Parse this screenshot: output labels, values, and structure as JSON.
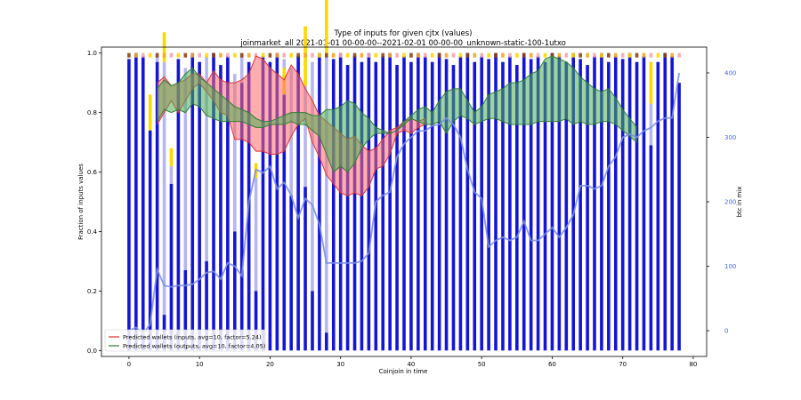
{
  "chart_data": {
    "type": "bar",
    "title": "Type of inputs for given cjtx (values)",
    "subtitle": "joinmarket_all 2021-01-01 00-00-00--2021-02-01 00-00-00_unknown-static-100-1utxo",
    "xlabel": "Coinjoin in time",
    "ylabel": "Fraction of inputs values",
    "ylabel_right": "btc in mix",
    "xlim": [
      -3.9,
      81.9
    ],
    "ylim": [
      -0.02,
      1.02
    ],
    "ylim_right": [
      -40,
      440
    ],
    "xticks": [
      0,
      10,
      20,
      30,
      40,
      50,
      60,
      70,
      80
    ],
    "yticks": [
      0.0,
      0.2,
      0.4,
      0.6,
      0.8,
      1.0
    ],
    "yticks_right": [
      0,
      100,
      200,
      300,
      400
    ],
    "bar_colors": {
      "fresh": "#1515d8",
      "remix": "#b6b6f2",
      "yellow": "#ffd700",
      "orange": "#f5a623",
      "brown": "#8b4513",
      "pink": "#f4a6b4"
    },
    "bars_top": [
      0.98,
      1.0,
      0.99,
      0.74,
      0.99,
      0.97,
      0.62,
      0.98,
      0.95,
      1.0,
      0.97,
      0.99,
      1.0,
      0.96,
      0.99,
      0.93,
      1.0,
      0.97,
      0.58,
      0.99,
      0.97,
      1.0,
      0.98,
      0.95,
      0.99,
      0.89,
      0.97,
      1.0,
      0.99,
      0.98,
      1.0,
      0.96,
      0.99,
      0.97,
      1.0,
      0.97,
      0.99,
      1.0,
      0.96,
      0.99,
      0.97,
      1.0,
      0.99,
      0.97,
      1.0,
      0.98,
      0.96,
      0.99,
      1.0,
      0.97,
      0.99,
      0.98,
      1.0,
      0.97,
      0.99,
      0.96,
      1.0,
      0.98,
      0.99,
      0.97,
      1.0,
      0.99,
      0.97,
      1.0,
      0.98,
      0.96,
      0.99,
      1.0,
      0.97,
      0.99,
      0.98,
      1.0,
      0.97,
      0.99,
      0.83,
      0.97,
      1.0,
      0.99,
      0.9
    ],
    "bars_fresh": [
      0.98,
      1.0,
      0.99,
      0.74,
      0.97,
      0.12,
      0.56,
      0.98,
      0.27,
      1.0,
      0.97,
      0.3,
      1.0,
      0.96,
      0.99,
      0.4,
      0.9,
      0.97,
      0.2,
      0.99,
      0.97,
      1.0,
      0.86,
      0.52,
      0.99,
      0.55,
      0.2,
      1.0,
      0.06,
      0.98,
      1.0,
      0.96,
      0.99,
      0.97,
      1.0,
      0.97,
      0.99,
      1.0,
      0.96,
      0.99,
      0.97,
      1.0,
      0.99,
      0.97,
      1.0,
      0.98,
      0.96,
      0.99,
      1.0,
      0.97,
      0.99,
      0.98,
      1.0,
      0.97,
      0.99,
      0.96,
      1.0,
      0.98,
      0.99,
      0.97,
      1.0,
      0.99,
      0.97,
      1.0,
      0.98,
      0.96,
      0.99,
      1.0,
      0.97,
      0.99,
      0.98,
      1.0,
      0.97,
      0.99,
      0.69,
      0.97,
      1.0,
      0.99,
      0.9
    ],
    "bars_yellow": [
      0,
      0,
      0,
      0.0,
      0,
      0,
      0,
      0,
      0,
      0,
      0,
      0,
      0,
      0,
      0,
      0,
      0,
      0,
      0,
      0,
      0,
      0,
      0,
      0,
      0,
      0,
      0,
      0,
      0,
      0,
      0,
      0,
      0,
      0,
      0,
      0,
      0,
      0,
      0,
      0,
      0,
      0,
      0,
      0,
      0,
      0,
      0,
      0,
      0,
      0,
      0,
      0,
      0,
      0,
      0,
      0,
      0,
      0,
      0,
      0,
      0,
      0,
      0,
      0,
      0,
      0,
      0,
      0,
      0,
      0,
      0,
      0,
      0,
      0,
      0,
      0,
      0,
      0,
      0
    ],
    "cross_bars": [
      {
        "x": 3,
        "top": 0.74,
        "yellow": 0.12
      },
      {
        "x": 5,
        "top": 0.97,
        "yellow": 0.1
      },
      {
        "x": 6,
        "top": 0.62,
        "yellow": 0.06
      },
      {
        "x": 18,
        "top": 0.58,
        "yellow": 0.05
      },
      {
        "x": 22,
        "top": 0.86,
        "yellow": 0.09
      },
      {
        "x": 25,
        "top": 0.89,
        "yellow": 0.2
      },
      {
        "x": 28,
        "top": 0.99,
        "yellow": 0.7
      },
      {
        "x": 74,
        "top": 0.83,
        "yellow": 0.14
      }
    ],
    "overlay_series": [
      {
        "name": "Predicted wallets (inputs, avg=10, factor=5.24)",
        "color": "#e03030",
        "fill": "#ff6b6b",
        "x": [
          4,
          5,
          6,
          7,
          8,
          9,
          10,
          11,
          12,
          13,
          14,
          15,
          16,
          17,
          18,
          19,
          20,
          21,
          22,
          23,
          24,
          25,
          26,
          27,
          28,
          29,
          30,
          31,
          32,
          33,
          34,
          35,
          36,
          37,
          38,
          39,
          40,
          41,
          42
        ],
        "upper": [
          0.9,
          0.92,
          0.89,
          0.9,
          0.91,
          0.93,
          0.93,
          0.9,
          0.94,
          0.91,
          0.9,
          0.9,
          0.91,
          0.93,
          0.99,
          0.98,
          0.95,
          0.93,
          0.91,
          0.96,
          0.93,
          0.88,
          0.84,
          0.79,
          0.77,
          0.75,
          0.73,
          0.71,
          0.72,
          0.69,
          0.67,
          0.68,
          0.71,
          0.74,
          0.75,
          0.77,
          0.78,
          0.77,
          0.78
        ],
        "lower": [
          0.76,
          0.8,
          0.84,
          0.8,
          0.84,
          0.88,
          0.9,
          0.87,
          0.84,
          0.8,
          0.79,
          0.71,
          0.71,
          0.7,
          0.67,
          0.67,
          0.66,
          0.66,
          0.67,
          0.72,
          0.76,
          0.78,
          0.7,
          0.65,
          0.59,
          0.56,
          0.53,
          0.52,
          0.53,
          0.52,
          0.55,
          0.61,
          0.62,
          0.66,
          0.73,
          0.74,
          0.73,
          0.75,
          0.76
        ]
      },
      {
        "name": "Predicted wallets (outputs, avg=10, factor=4.05)",
        "color": "#2e7d32",
        "fill": "#4caf50",
        "x": [
          4,
          5,
          6,
          7,
          8,
          9,
          10,
          11,
          12,
          13,
          14,
          15,
          16,
          17,
          18,
          19,
          20,
          21,
          22,
          23,
          24,
          25,
          26,
          27,
          28,
          29,
          30,
          31,
          32,
          33,
          34,
          35,
          36,
          37,
          38,
          39,
          40,
          41,
          42,
          43,
          44,
          45,
          46,
          47,
          48,
          49,
          50,
          51,
          52,
          53,
          54,
          55,
          56,
          57,
          58,
          59,
          60,
          61,
          62,
          63,
          64,
          65,
          66,
          67,
          68,
          69,
          70,
          71,
          72
        ],
        "upper": [
          0.88,
          0.91,
          0.89,
          0.9,
          0.93,
          0.95,
          0.92,
          0.9,
          0.88,
          0.86,
          0.84,
          0.82,
          0.81,
          0.8,
          0.78,
          0.77,
          0.77,
          0.78,
          0.79,
          0.8,
          0.8,
          0.8,
          0.79,
          0.79,
          0.81,
          0.81,
          0.82,
          0.84,
          0.83,
          0.8,
          0.78,
          0.75,
          0.74,
          0.73,
          0.74,
          0.77,
          0.79,
          0.81,
          0.82,
          0.8,
          0.84,
          0.87,
          0.88,
          0.88,
          0.84,
          0.8,
          0.82,
          0.86,
          0.87,
          0.88,
          0.9,
          0.9,
          0.91,
          0.93,
          0.94,
          0.98,
          0.99,
          0.98,
          0.97,
          0.95,
          0.92,
          0.9,
          0.88,
          0.87,
          0.88,
          0.85,
          0.81,
          0.78,
          0.75
        ],
        "lower": [
          0.77,
          0.81,
          0.8,
          0.81,
          0.8,
          0.83,
          0.82,
          0.79,
          0.78,
          0.77,
          0.77,
          0.77,
          0.77,
          0.76,
          0.75,
          0.75,
          0.76,
          0.76,
          0.76,
          0.77,
          0.76,
          0.76,
          0.74,
          0.72,
          0.66,
          0.6,
          0.62,
          0.6,
          0.63,
          0.68,
          0.71,
          0.73,
          0.73,
          0.73,
          0.74,
          0.76,
          0.78,
          0.77,
          0.76,
          0.76,
          0.77,
          0.73,
          0.77,
          0.79,
          0.78,
          0.76,
          0.77,
          0.78,
          0.78,
          0.77,
          0.76,
          0.76,
          0.76,
          0.76,
          0.77,
          0.77,
          0.77,
          0.77,
          0.78,
          0.76,
          0.77,
          0.76,
          0.76,
          0.77,
          0.77,
          0.76,
          0.74,
          0.72,
          0.7
        ]
      }
    ],
    "btc_series": {
      "name": "btc in mix",
      "color": "#7b8fe6",
      "x": [
        0,
        1,
        2,
        3,
        4,
        5,
        6,
        7,
        8,
        9,
        10,
        11,
        12,
        13,
        14,
        15,
        16,
        17,
        18,
        19,
        20,
        21,
        22,
        23,
        24,
        25,
        26,
        27,
        28,
        29,
        30,
        31,
        32,
        33,
        34,
        35,
        36,
        37,
        38,
        39,
        40,
        41,
        42,
        43,
        44,
        45,
        46,
        47,
        48,
        49,
        50,
        51,
        52,
        53,
        54,
        55,
        56,
        57,
        58,
        59,
        60,
        61,
        62,
        63,
        64,
        65,
        66,
        67,
        68,
        69,
        70,
        71,
        72,
        73,
        74,
        75,
        76,
        77,
        78
      ],
      "y": [
        0,
        5,
        -5,
        10,
        95,
        70,
        68,
        70,
        70,
        72,
        80,
        90,
        92,
        80,
        105,
        100,
        85,
        200,
        250,
        245,
        255,
        220,
        230,
        210,
        175,
        205,
        195,
        165,
        105,
        105,
        105,
        105,
        105,
        108,
        120,
        200,
        210,
        215,
        270,
        290,
        300,
        310,
        310,
        318,
        320,
        330,
        320,
        300,
        250,
        215,
        205,
        130,
        140,
        145,
        140,
        145,
        170,
        140,
        140,
        150,
        160,
        145,
        160,
        180,
        225,
        225,
        220,
        225,
        255,
        270,
        300,
        305,
        300,
        310,
        315,
        325,
        330,
        330,
        400
      ]
    },
    "legend": {
      "placement": "lower-left",
      "entries": [
        {
          "label": "Predicted wallets (inputs, avg=10, factor=5.24)",
          "color": "#e03030"
        },
        {
          "label": "Predicted wallets (outputs, avg=10, factor=4.05)",
          "color": "#2e7d32"
        }
      ]
    },
    "grid": false
  }
}
